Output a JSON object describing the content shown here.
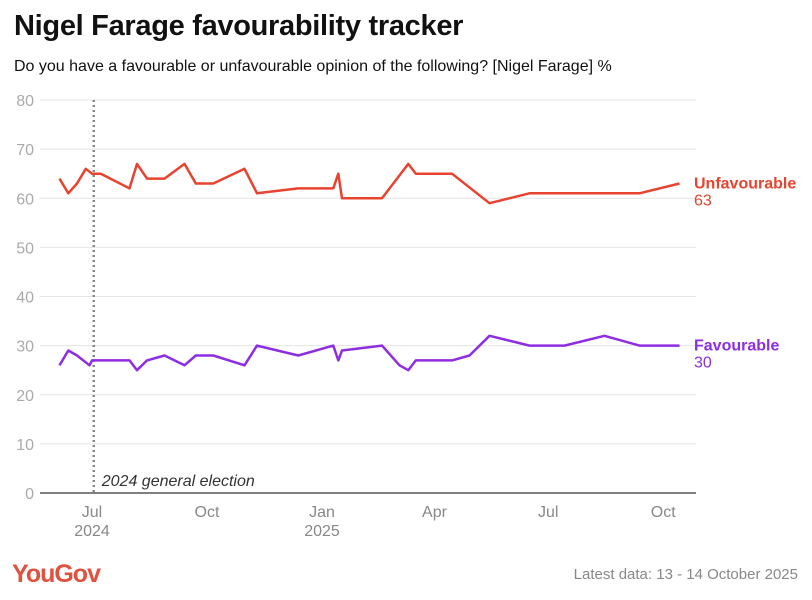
{
  "title": "Nigel Farage favourability tracker",
  "subtitle": "Do you have a favourable or unfavourable opinion of the following? [Nigel Farage] %",
  "footer": {
    "logo": "YouGov",
    "latest": "Latest data: 13 - 14 October 2025"
  },
  "chart_data": {
    "type": "line",
    "ylim": [
      0,
      80
    ],
    "yticks": [
      0,
      10,
      20,
      30,
      40,
      50,
      60,
      70,
      80
    ],
    "xticks": [
      {
        "date": "2024-07-01",
        "label": "Jul",
        "sub": "2024"
      },
      {
        "date": "2024-10-01",
        "label": "Oct",
        "sub": ""
      },
      {
        "date": "2025-01-01",
        "label": "Jan",
        "sub": "2025"
      },
      {
        "date": "2025-04-01",
        "label": "Apr",
        "sub": ""
      },
      {
        "date": "2025-07-01",
        "label": "Jul",
        "sub": ""
      },
      {
        "date": "2025-10-01",
        "label": "Oct",
        "sub": ""
      }
    ],
    "grid": true,
    "annotation": {
      "date": "2024-07-04",
      "label": "2024 general election"
    },
    "series": [
      {
        "name": "Unfavourable",
        "color": "#e8432f",
        "last_label": "63",
        "x": [
          "2024-06-05",
          "2024-06-12",
          "2024-06-19",
          "2024-06-26",
          "2024-07-01",
          "2024-07-08",
          "2024-07-31",
          "2024-08-06",
          "2024-08-14",
          "2024-08-28",
          "2024-09-13",
          "2024-09-22",
          "2024-10-06",
          "2024-10-31",
          "2024-11-10",
          "2024-12-13",
          "2025-01-10",
          "2025-01-14",
          "2025-01-17",
          "2025-02-18",
          "2025-03-11",
          "2025-03-17",
          "2025-04-15",
          "2025-05-15",
          "2025-06-16",
          "2025-09-12",
          "2025-10-14"
        ],
        "y": [
          64,
          61,
          63,
          66,
          65,
          65,
          62,
          67,
          64,
          64,
          67,
          63,
          63,
          66,
          61,
          62,
          62,
          65,
          60,
          60,
          67,
          65,
          65,
          59,
          61,
          61,
          63
        ]
      },
      {
        "name": "Favourable",
        "color": "#8e2de2",
        "last_label": "30",
        "x": [
          "2024-06-05",
          "2024-06-12",
          "2024-06-19",
          "2024-06-29",
          "2024-07-01",
          "2024-07-31",
          "2024-08-06",
          "2024-08-14",
          "2024-08-28",
          "2024-09-13",
          "2024-09-22",
          "2024-10-06",
          "2024-10-31",
          "2024-11-10",
          "2024-12-13",
          "2025-01-10",
          "2025-01-14",
          "2025-01-17",
          "2025-02-18",
          "2025-03-04",
          "2025-03-11",
          "2025-03-17",
          "2025-04-15",
          "2025-04-29",
          "2025-05-15",
          "2025-06-16",
          "2025-07-14",
          "2025-08-15",
          "2025-09-12",
          "2025-10-14"
        ],
        "y": [
          26,
          29,
          28,
          26,
          27,
          27,
          25,
          27,
          28,
          26,
          28,
          28,
          26,
          30,
          28,
          30,
          27,
          29,
          30,
          26,
          25,
          27,
          27,
          28,
          32,
          30,
          30,
          32,
          30,
          30
        ]
      }
    ]
  }
}
